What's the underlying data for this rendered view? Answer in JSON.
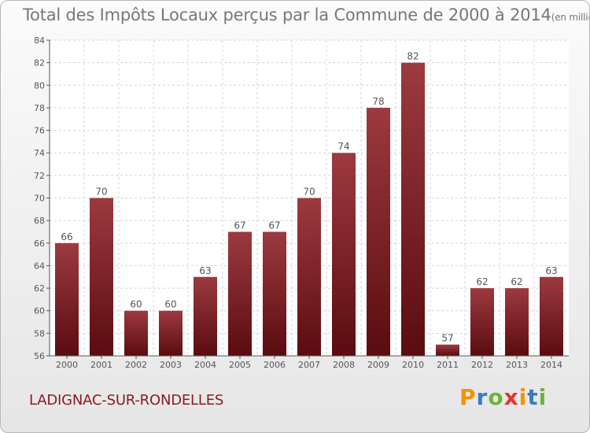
{
  "page": {
    "title": "Total des Impôts Locaux perçus par la Commune de 2000 à 2014",
    "unit": "(en milliers d'€)",
    "commune": "LADIGNAC-SUR-RONDELLES",
    "brand": {
      "letters": [
        "P",
        "r",
        "o",
        "x",
        "i",
        "t",
        "i"
      ],
      "colors": [
        "#f29400",
        "#3a7bbf",
        "#6cb33f",
        "#e8332a",
        "#f29400",
        "#3a7bbf",
        "#6cb33f"
      ]
    }
  },
  "chart_data": {
    "type": "bar",
    "title": "Total des Impôts Locaux perçus par la Commune de 2000 à 2014",
    "xlabel": "",
    "ylabel": "",
    "categories": [
      "2000",
      "2001",
      "2002",
      "2003",
      "2004",
      "2005",
      "2006",
      "2007",
      "2008",
      "2009",
      "2010",
      "2011",
      "2012",
      "2013",
      "2014"
    ],
    "values": [
      66,
      70,
      60,
      60,
      63,
      67,
      67,
      70,
      74,
      78,
      82,
      57,
      62,
      62,
      63
    ],
    "ylim": [
      56,
      84
    ],
    "yticks": [
      56,
      58,
      60,
      62,
      64,
      66,
      68,
      70,
      72,
      74,
      76,
      78,
      80,
      82,
      84
    ],
    "grid": true,
    "bar_color": "#7a1a20"
  }
}
